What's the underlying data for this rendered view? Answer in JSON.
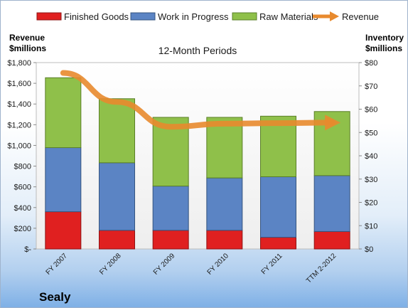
{
  "chart_data": {
    "type": "bar",
    "subtitle": "12-Month Periods",
    "company": "Sealy",
    "left_axis_title": [
      "Revenue",
      "$millions"
    ],
    "right_axis_title": [
      "Inventory",
      "$millions"
    ],
    "categories": [
      "FY 2007",
      "FY 2008",
      "FY 2009",
      "FY 2010",
      "FY 2011",
      "TTM 2-2012"
    ],
    "left_ticks": [
      "$-",
      "$200",
      "$400",
      "$600",
      "$800",
      "$1,000",
      "$1,200",
      "$1,400",
      "$1,600",
      "$1,800"
    ],
    "right_ticks": [
      "$0",
      "$10",
      "$20",
      "$30",
      "$40",
      "$50",
      "$60",
      "$70",
      "$80"
    ],
    "ylim_left": [
      0,
      1800
    ],
    "ylim_right": [
      0,
      80
    ],
    "grid": false,
    "legend_position": "top",
    "series": [
      {
        "name": "Finished Goods",
        "type": "stacked-bar",
        "axis": "right",
        "color": "#e02020",
        "values": [
          16,
          8,
          8,
          8,
          5,
          7.5
        ]
      },
      {
        "name": "Work in Progress",
        "type": "stacked-bar",
        "axis": "right",
        "color": "#5b84c4",
        "values": [
          27.5,
          29,
          19,
          22.5,
          26,
          24
        ]
      },
      {
        "name": "Raw Materials",
        "type": "stacked-bar",
        "axis": "right",
        "color": "#8fc04a",
        "values": [
          30,
          27.5,
          29.5,
          26,
          26,
          27.5
        ]
      },
      {
        "name": "Revenue",
        "type": "line",
        "axis": "left",
        "color": "#e88a2e",
        "values": [
          1700,
          1420,
          1180,
          1210,
          1215,
          1220
        ]
      }
    ]
  }
}
